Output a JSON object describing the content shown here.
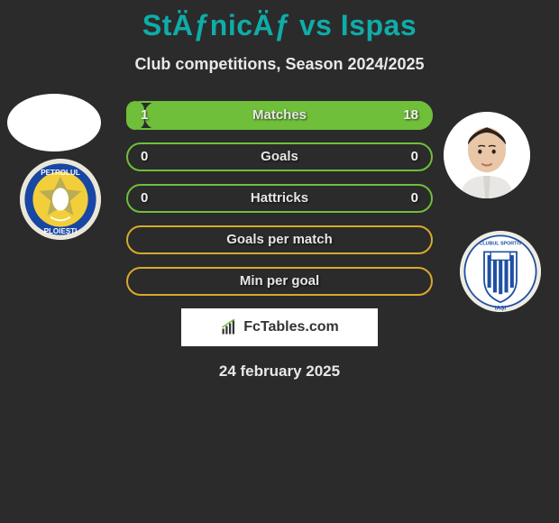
{
  "title": "StÄƒnicÄƒ vs Ispas",
  "subtitle": "Club competitions, Season 2024/2025",
  "date": "24 february 2025",
  "brand": "FcTables.com",
  "colors": {
    "accent": "#0faca8",
    "green": "#6fbf3a",
    "gold": "#d9a92e",
    "bg": "#2b2b2b",
    "text_light": "#e8e8e8"
  },
  "players": {
    "left": {
      "name": "StÄƒnicÄƒ",
      "club": "Petrolul Ploiești",
      "club_colors": {
        "primary": "#f2cf3a",
        "secondary": "#1846a3"
      }
    },
    "right": {
      "name": "Ispas",
      "club": "CSM Politehnica Iași",
      "club_colors": {
        "primary": "#1e4fa3",
        "secondary": "#ffffff"
      }
    }
  },
  "bars": [
    {
      "label": "Matches",
      "left": "1",
      "right": "18",
      "left_pct": 5.3,
      "right_pct": 94.7,
      "style": "green"
    },
    {
      "label": "Goals",
      "left": "0",
      "right": "0",
      "left_pct": 0,
      "right_pct": 0,
      "style": "green"
    },
    {
      "label": "Hattricks",
      "left": "0",
      "right": "0",
      "left_pct": 0,
      "right_pct": 0,
      "style": "green"
    },
    {
      "label": "Goals per match",
      "left": "",
      "right": "",
      "left_pct": 0,
      "right_pct": 0,
      "style": "gold"
    },
    {
      "label": "Min per goal",
      "left": "",
      "right": "",
      "left_pct": 0,
      "right_pct": 0,
      "style": "gold"
    }
  ]
}
